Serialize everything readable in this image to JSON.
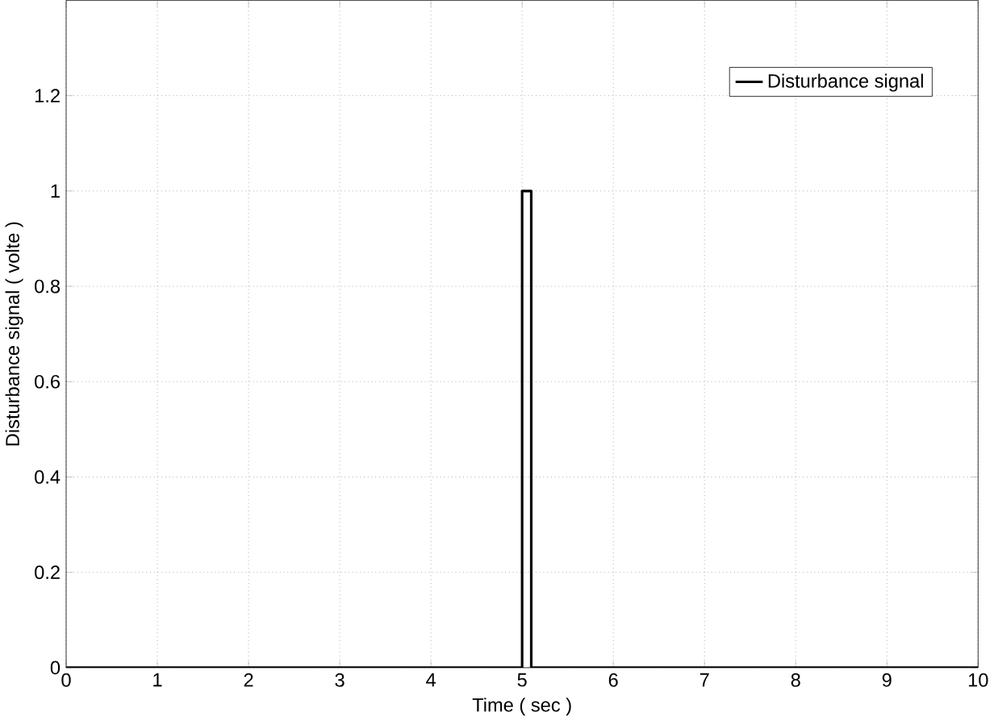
{
  "chart_data": {
    "type": "line",
    "xlabel": "Time ( sec )",
    "ylabel": "Disturbance signal ( volte )",
    "x": [
      0,
      5,
      5,
      5.1,
      5.1,
      10
    ],
    "series": [
      {
        "name": "Disturbance signal",
        "color": "#000000",
        "values": [
          0,
          0,
          1,
          1,
          0,
          0
        ]
      }
    ],
    "xlim": [
      0,
      10
    ],
    "ylim": [
      0,
      1.4
    ],
    "xticks": [
      0,
      1,
      2,
      3,
      4,
      5,
      6,
      7,
      8,
      9,
      10
    ],
    "yticks": [
      0,
      0.2,
      0.4,
      0.6,
      0.8,
      1,
      1.2
    ],
    "grid": true,
    "legend": "top right",
    "marker": "none",
    "line_style": "solid"
  }
}
